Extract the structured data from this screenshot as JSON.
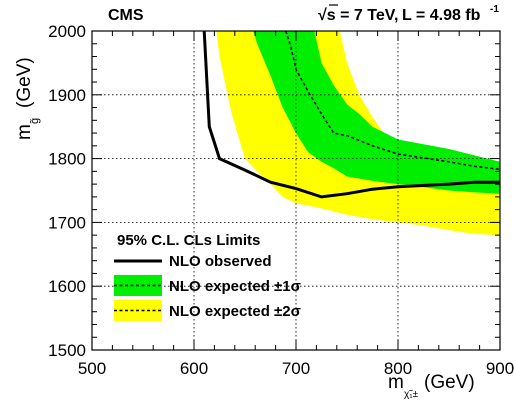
{
  "chart_data": {
    "type": "area",
    "experiment": "CMS",
    "energy": "√s = 7 TeV,",
    "luminosity": "L = 4.98 fb",
    "luminosity_exp": "-1",
    "xlabel": "m",
    "xlabel_sub": "χ̃₁±",
    "xlabel_unit": "(GeV)",
    "ylabel": "m",
    "ylabel_sub": "g̃",
    "ylabel_unit": "(GeV)",
    "xlim": [
      500,
      900
    ],
    "ylim": [
      1500,
      2000
    ],
    "xticks": [
      500,
      600,
      700,
      800,
      900
    ],
    "yticks": [
      1500,
      1600,
      1700,
      1800,
      1900,
      2000
    ],
    "grid": true,
    "legend": {
      "title": "95% C.L. CLs Limits",
      "placement": "bottom-left",
      "entries": [
        {
          "label": "NLO observed",
          "style": "solid"
        },
        {
          "label": "NLO expected ±1σ",
          "style": "dashed-band-1"
        },
        {
          "label": "NLO expected ±2σ",
          "style": "dashed-band-2"
        }
      ]
    },
    "colors": {
      "observed": "#000000",
      "expected": "#000000",
      "band1": "#00ee00",
      "band2": "#ffff00"
    },
    "series": [
      {
        "name": "NLO observed",
        "x": [
          610,
          615,
          625,
          650,
          675,
          700,
          725,
          750,
          775,
          800,
          850,
          875,
          900
        ],
        "y": [
          2000,
          1850,
          1800,
          1782,
          1763,
          1753,
          1740,
          1745,
          1752,
          1756,
          1760,
          1763,
          1763
        ]
      },
      {
        "name": "NLO expected",
        "x": [
          690,
          695,
          700,
          712,
          725,
          737,
          750,
          775,
          800,
          850,
          875,
          900
        ],
        "y": [
          2000,
          1975,
          1940,
          1905,
          1870,
          1840,
          1836,
          1820,
          1807,
          1795,
          1788,
          1783
        ]
      }
    ],
    "bands": [
      {
        "name": "±2σ",
        "upper_x": [
          743,
          750,
          762,
          775,
          787,
          800,
          825,
          850,
          875,
          900
        ],
        "upper_y": [
          2000,
          1950,
          1900,
          1865,
          1838,
          1820,
          1805,
          1795,
          1790,
          1787
        ],
        "lower_x": [
          900,
          875,
          850,
          825,
          800,
          775,
          750,
          725,
          700,
          687,
          675,
          662,
          650,
          637,
          625,
          622
        ],
        "lower_y": [
          1680,
          1682,
          1688,
          1695,
          1700,
          1705,
          1712,
          1722,
          1730,
          1740,
          1760,
          1780,
          1800,
          1870,
          1960,
          2000
        ]
      },
      {
        "name": "±1σ",
        "upper_x": [
          718,
          725,
          737,
          750,
          762,
          775,
          800,
          850,
          875,
          900
        ],
        "upper_y": [
          2000,
          1950,
          1915,
          1885,
          1870,
          1850,
          1830,
          1815,
          1805,
          1795
        ],
        "lower_x": [
          900,
          875,
          850,
          825,
          800,
          775,
          750,
          737,
          725,
          712,
          700,
          687,
          675,
          662,
          658
        ],
        "lower_y": [
          1745,
          1747,
          1750,
          1755,
          1760,
          1765,
          1772,
          1785,
          1795,
          1810,
          1840,
          1880,
          1930,
          1980,
          2000
        ]
      }
    ]
  }
}
